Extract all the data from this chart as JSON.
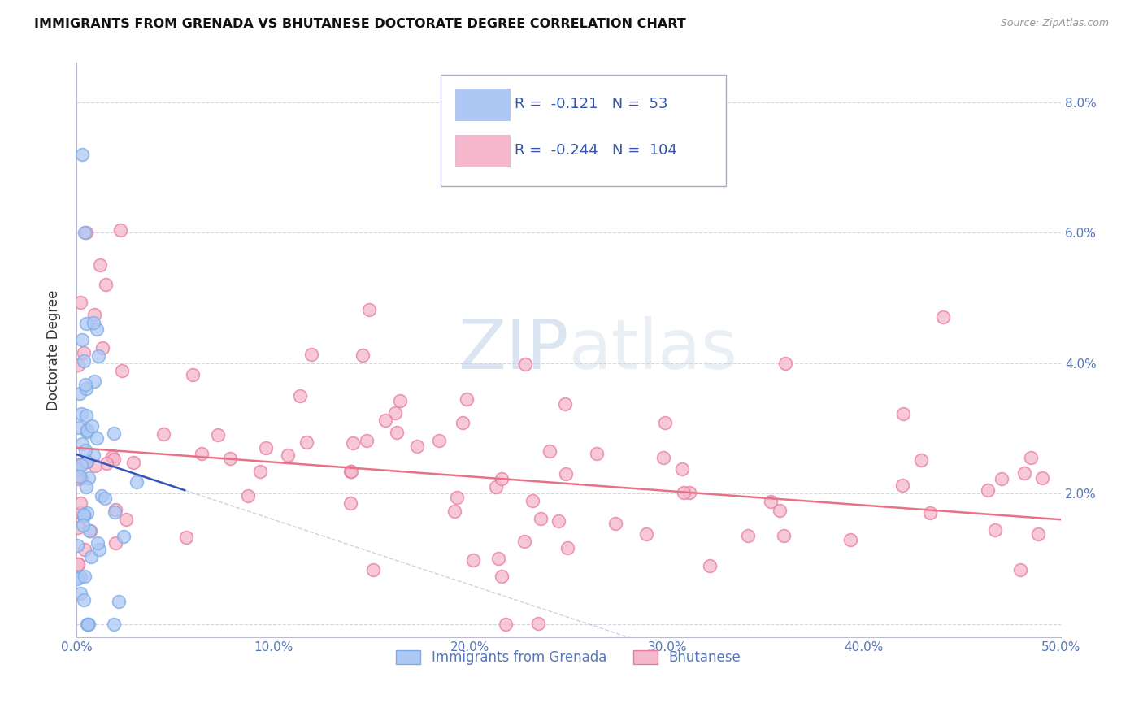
{
  "title": "IMMIGRANTS FROM GRENADA VS BHUTANESE DOCTORATE DEGREE CORRELATION CHART",
  "source": "Source: ZipAtlas.com",
  "ylabel": "Doctorate Degree",
  "xlim": [
    0.0,
    0.5
  ],
  "ylim": [
    -0.002,
    0.086
  ],
  "xtick_positions": [
    0.0,
    0.1,
    0.2,
    0.3,
    0.4,
    0.5
  ],
  "xtick_labels": [
    "0.0%",
    "10.0%",
    "20.0%",
    "30.0%",
    "40.0%",
    "50.0%"
  ],
  "ytick_positions": [
    0.0,
    0.02,
    0.04,
    0.06,
    0.08
  ],
  "ytick_labels_right": [
    "",
    "2.0%",
    "4.0%",
    "6.0%",
    "8.0%"
  ],
  "grenada_color_fill": "#adc8f5",
  "grenada_color_edge": "#7aaae8",
  "bhutanese_color_fill": "#f5b8cc",
  "bhutanese_color_edge": "#e87aa0",
  "grenada_line_color": "#3355bb",
  "bhutanese_line_color": "#e87088",
  "grenada_R": -0.121,
  "grenada_N": 53,
  "bhutanese_R": -0.244,
  "bhutanese_N": 104,
  "legend_label_grenada": "Immigrants from Grenada",
  "legend_label_bhutanese": "Bhutanese",
  "watermark": "ZIPatlas",
  "grid_color": "#ccccdd",
  "tick_label_color": "#5577bb",
  "title_color": "#111111",
  "ylabel_color": "#333333"
}
